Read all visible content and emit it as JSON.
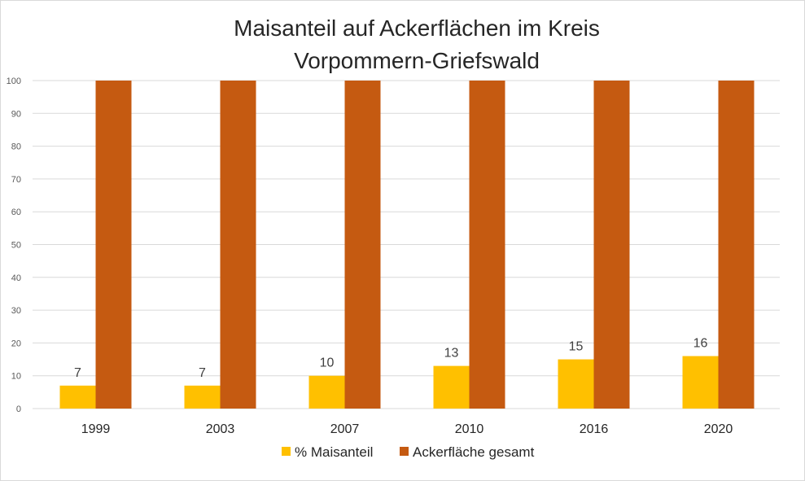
{
  "chart_data": {
    "type": "bar",
    "title": [
      "Maisanteil auf Ackerflächen im Kreis",
      "Vorpommern-Griefswald"
    ],
    "xlabel": "",
    "ylabel": "",
    "categories": [
      "1999",
      "2003",
      "2007",
      "2010",
      "2016",
      "2020"
    ],
    "series": [
      {
        "name": "% Maisanteil",
        "color": "#FFC000",
        "values": [
          7,
          7,
          10,
          13,
          15,
          16
        ],
        "labels": [
          "7",
          "7",
          "10",
          "13",
          "15",
          "16"
        ]
      },
      {
        "name": "Ackerfläche gesamt",
        "color": "#C55A11",
        "values": [
          100,
          100,
          100,
          100,
          100,
          100
        ]
      }
    ],
    "ylim": [
      0,
      100
    ],
    "yticks": [
      "0",
      "10",
      "20",
      "30",
      "40",
      "50",
      "60",
      "70",
      "80",
      "90",
      "100"
    ],
    "grid": true,
    "legend": "bottom"
  }
}
